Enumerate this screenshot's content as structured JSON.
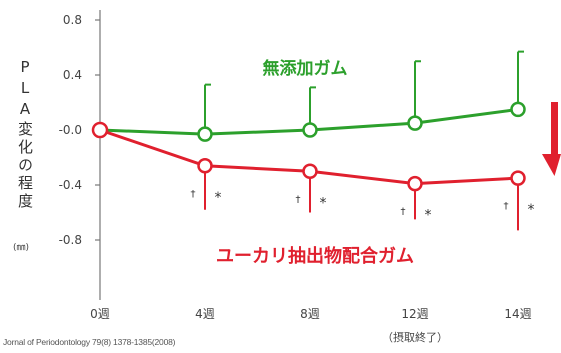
{
  "chart_data": {
    "type": "line",
    "ylabel": "PLA変化の程度",
    "yunit": "(㎜)",
    "ylim": [
      -1.0,
      0.9
    ],
    "yticks": [
      0.8,
      0.4,
      0.0,
      -0.4,
      -0.8
    ],
    "ytick_labels": [
      "0.8",
      "0.4",
      "-0.0",
      "-0.4",
      "-0.8"
    ],
    "categories": [
      "0週",
      "4週",
      "8週",
      "12週",
      "14週"
    ],
    "x_sublabel": "（摂取終了）",
    "series": [
      {
        "name": "無添加ガム",
        "color": "#2ca02c",
        "values": [
          0.0,
          -0.03,
          0.0,
          0.05,
          0.15
        ],
        "error_upper": [
          null,
          0.33,
          0.31,
          0.5,
          0.57
        ]
      },
      {
        "name": "ユーカリ抽出物配合ガム",
        "color": "#e0202e",
        "values": [
          0.0,
          -0.26,
          -0.3,
          -0.39,
          -0.35
        ],
        "error_lower": [
          null,
          -0.58,
          -0.6,
          -0.65,
          -0.73
        ]
      }
    ],
    "significance": [
      {
        "category": "4週",
        "marks": "† *"
      },
      {
        "category": "8週",
        "marks": "† *"
      },
      {
        "category": "12週",
        "marks": "† *"
      },
      {
        "category": "14週",
        "marks": "† *"
      }
    ],
    "arrow_color": "#e0202e"
  },
  "citation": "Jornal of Periodontology 79(8) 1378-1385(2008)"
}
